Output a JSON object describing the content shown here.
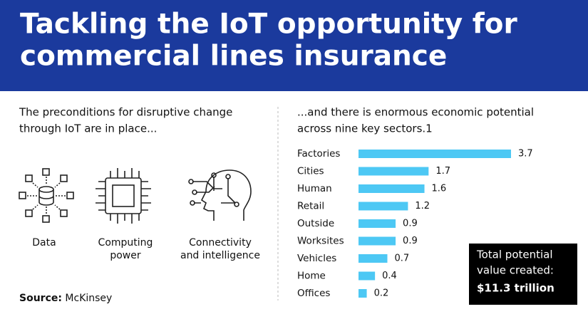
{
  "header": {
    "title_lines": [
      "Tackling the IoT opportunity for",
      "commercial lines insurance"
    ]
  },
  "left": {
    "heading_lines": [
      "The preconditions for disruptive change",
      "through IoT are in place..."
    ],
    "icons": [
      {
        "label_lines": [
          "Data"
        ]
      },
      {
        "label_lines": [
          "Computing",
          "power"
        ]
      },
      {
        "label_lines": [
          "Connectivity",
          "and intelligence"
        ]
      }
    ]
  },
  "chart_data": {
    "type": "bar",
    "orientation": "horizontal",
    "title_lines": [
      "...and there is  enormous economic potential",
      "across nine key sectors.1"
    ],
    "categories": [
      "Factories",
      "Cities",
      "Human",
      "Retail",
      "Outside",
      "Worksites",
      "Vehicles",
      "Home",
      "Offices"
    ],
    "values": [
      3.7,
      1.7,
      1.6,
      1.2,
      0.9,
      0.9,
      0.7,
      0.4,
      0.2
    ],
    "color": "#4dc8f4"
  },
  "total": {
    "lines": [
      "Total potential",
      "value created:",
      "$11.3 trillion"
    ]
  },
  "source": {
    "label": "Source:",
    "text": "McKinsey"
  }
}
